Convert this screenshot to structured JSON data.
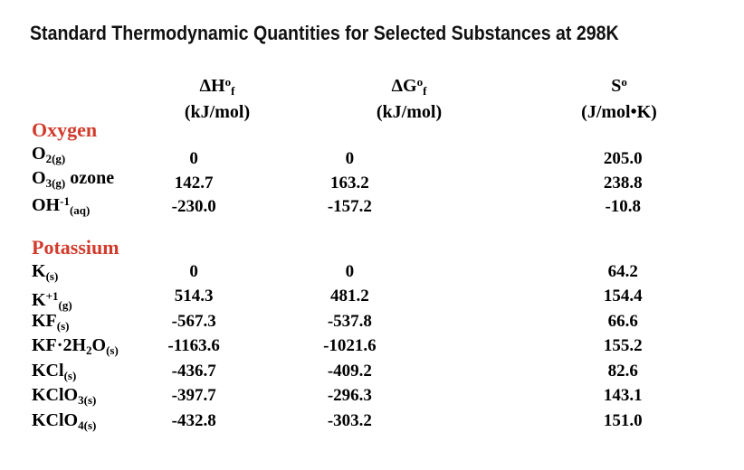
{
  "title": "Standard Thermodynamic Quantities for Selected Substances at 298K",
  "colors": {
    "accent": "#d13b2c",
    "text": "#000000",
    "background": "#ffffff"
  },
  "columns": [
    {
      "main": "ΔH",
      "sup": "o",
      "sub": "f",
      "unit": "(kJ/mol)"
    },
    {
      "main": "ΔG",
      "sup": "o",
      "sub": "f",
      "unit": "(kJ/mol)"
    },
    {
      "main": "S",
      "sup": "o",
      "sub": "",
      "unit": "(J/mol•K)"
    }
  ],
  "sections": [
    {
      "name": "Oxygen",
      "rows": [
        {
          "formula": [
            [
              "n",
              "O"
            ],
            [
              "b",
              "2(g)"
            ]
          ],
          "values": [
            "0",
            "0",
            "205.0"
          ]
        },
        {
          "formula": [
            [
              "n",
              "O"
            ],
            [
              "b",
              "3(g)"
            ],
            [
              "n",
              " ozone"
            ]
          ],
          "values": [
            "142.7",
            "163.2",
            "238.8"
          ]
        },
        {
          "formula": [
            [
              "n",
              "OH"
            ],
            [
              "p",
              "-1"
            ],
            [
              "b",
              "(aq)"
            ]
          ],
          "values": [
            "-230.0",
            "-157.2",
            "-10.8"
          ]
        }
      ]
    },
    {
      "name": "Potassium",
      "rows": [
        {
          "formula": [
            [
              "n",
              "K"
            ],
            [
              "b",
              "(s)"
            ]
          ],
          "values": [
            "0",
            "0",
            "64.2"
          ]
        },
        {
          "formula": [
            [
              "n",
              "K"
            ],
            [
              "p",
              "+1"
            ],
            [
              "b",
              "(g)"
            ]
          ],
          "values": [
            "514.3",
            "481.2",
            "154.4"
          ]
        },
        {
          "formula": [
            [
              "n",
              "KF"
            ],
            [
              "b",
              "(s)"
            ]
          ],
          "values": [
            "-567.3",
            "-537.8",
            "66.6"
          ]
        },
        {
          "formula": [
            [
              "n",
              "KF·2H"
            ],
            [
              "b",
              "2"
            ],
            [
              "n",
              "O"
            ],
            [
              "b",
              "(s)"
            ]
          ],
          "values": [
            "-1163.6",
            "-1021.6",
            "155.2"
          ]
        },
        {
          "formula": [
            [
              "n",
              "KCl"
            ],
            [
              "b",
              "(s)"
            ]
          ],
          "values": [
            "-436.7",
            "-409.2",
            "82.6"
          ]
        },
        {
          "formula": [
            [
              "n",
              "KClO"
            ],
            [
              "b",
              "3(s)"
            ]
          ],
          "values": [
            "-397.7",
            "-296.3",
            "143.1"
          ]
        },
        {
          "formula": [
            [
              "n",
              "KClO"
            ],
            [
              "b",
              "4(s)"
            ]
          ],
          "values": [
            "-432.8",
            "-303.2",
            "151.0"
          ]
        }
      ]
    }
  ]
}
